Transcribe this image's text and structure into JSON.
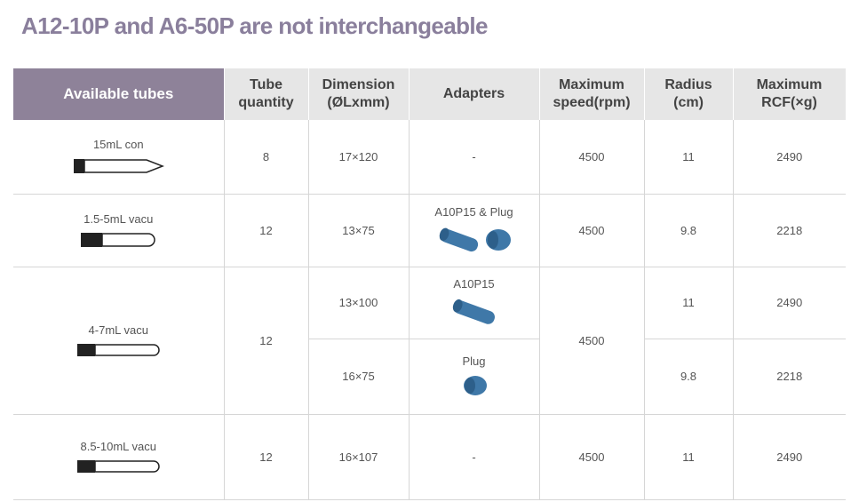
{
  "title": "A12-10P and A6-50P are not interchangeable",
  "table": {
    "header": [
      "Available tubes",
      "Tube quantity",
      "Dimension (ØLxmm)",
      "Adapters",
      "Maximum speed(rpm)",
      "Radius (cm)",
      "Maximum RCF(×g)"
    ],
    "rows": [
      {
        "tube": "15mL con",
        "quantity": 8,
        "dimension": "17×120",
        "adapters": "-",
        "speed": 4500,
        "radius": 11,
        "rcf": 2490
      },
      {
        "tube": "1.5-5mL vacu",
        "quantity": 12,
        "dimension": "13×75",
        "adapters": "A10P15 & Plug",
        "speed": 4500,
        "radius": 9.8,
        "rcf": 2218
      },
      {
        "tube": "4-7mL vacu",
        "quantity": 12,
        "speed": 4500,
        "variants": [
          {
            "dimension": "13×100",
            "adapters": "A10P15",
            "radius": 11,
            "rcf": 2490
          },
          {
            "dimension": "16×75",
            "adapters": "Plug",
            "radius": 9.8,
            "rcf": 2218
          }
        ]
      },
      {
        "tube": "8.5-10mL vacu",
        "quantity": 12,
        "dimension": "16×107",
        "adapters": "-",
        "speed": 4500,
        "radius": 11,
        "rcf": 2490
      }
    ]
  }
}
